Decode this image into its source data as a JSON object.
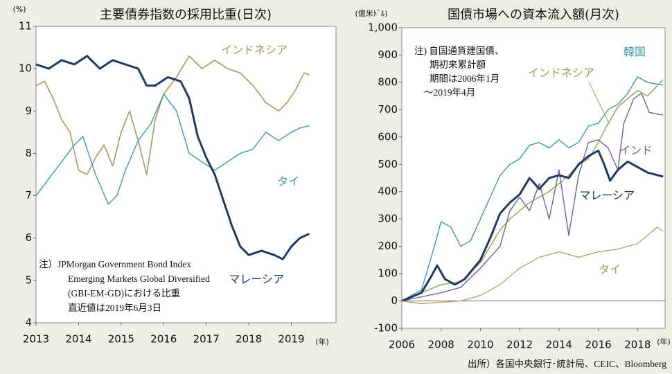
{
  "chart_data": [
    {
      "type": "line",
      "title": "主要債券指数の採用比重(日次)",
      "y_label": "(%)",
      "x_label": "(年)",
      "xlim": [
        2013,
        2020.05
      ],
      "xticks": [
        2013,
        2014,
        2015,
        2016,
        2017,
        2018,
        2019
      ],
      "ylim": [
        4,
        11
      ],
      "yticks": [
        4,
        5,
        6,
        7,
        8,
        9,
        10,
        11
      ],
      "note": [
        "注）JPMorgan Government Bond Index",
        "Emerging Markets Global Diversified",
        "(GBI-EM-GD)における比重",
        "直近値は2019年6月3日"
      ],
      "series": [
        {
          "name": "インドネシア",
          "color": "#a8985a",
          "x": [
            2013.0,
            2013.2,
            2013.4,
            2013.6,
            2013.8,
            2014.0,
            2014.2,
            2014.4,
            2014.6,
            2014.8,
            2015.0,
            2015.2,
            2015.4,
            2015.6,
            2015.8,
            2016.0,
            2016.3,
            2016.6,
            2016.9,
            2017.2,
            2017.5,
            2017.8,
            2018.1,
            2018.4,
            2018.7,
            2018.9,
            2019.1,
            2019.3,
            2019.42
          ],
          "values": [
            9.6,
            9.7,
            9.3,
            8.8,
            8.5,
            7.6,
            7.5,
            7.9,
            8.2,
            7.7,
            8.5,
            9.0,
            8.3,
            7.5,
            8.8,
            9.4,
            9.8,
            10.3,
            10.0,
            10.2,
            10.0,
            9.9,
            9.6,
            9.2,
            9.0,
            9.2,
            9.5,
            9.9,
            9.85
          ]
        },
        {
          "name": "タイ",
          "color": "#3a9aa8",
          "x": [
            2013.0,
            2013.3,
            2013.6,
            2013.9,
            2014.1,
            2014.4,
            2014.7,
            2014.9,
            2015.1,
            2015.4,
            2015.7,
            2016.0,
            2016.3,
            2016.6,
            2016.9,
            2017.2,
            2017.5,
            2017.8,
            2018.1,
            2018.4,
            2018.7,
            2019.0,
            2019.2,
            2019.42
          ],
          "values": [
            7.0,
            7.4,
            7.8,
            8.2,
            8.4,
            7.5,
            6.8,
            7.0,
            7.6,
            8.3,
            8.7,
            9.4,
            9.0,
            8.0,
            7.8,
            7.6,
            7.8,
            8.0,
            8.1,
            8.5,
            8.3,
            8.5,
            8.6,
            8.65
          ]
        },
        {
          "name": "マレーシア",
          "color": "#1f3864",
          "x": [
            2013.0,
            2013.3,
            2013.6,
            2013.9,
            2014.2,
            2014.5,
            2014.8,
            2015.1,
            2015.4,
            2015.6,
            2015.8,
            2016.1,
            2016.4,
            2016.6,
            2016.8,
            2017.0,
            2017.2,
            2017.4,
            2017.6,
            2017.8,
            2018.0,
            2018.3,
            2018.6,
            2018.8,
            2019.0,
            2019.2,
            2019.42
          ],
          "values": [
            10.1,
            10.0,
            10.2,
            10.1,
            10.3,
            10.0,
            10.2,
            10.1,
            10.0,
            9.6,
            9.6,
            9.8,
            9.7,
            9.3,
            8.4,
            7.9,
            7.5,
            6.9,
            6.3,
            5.8,
            5.6,
            5.7,
            5.6,
            5.5,
            5.8,
            6.0,
            6.1
          ]
        }
      ]
    },
    {
      "type": "line",
      "title": "国債市場への資本流入額(月次)",
      "y_label": "(億米ﾄﾞﾙ)",
      "x_label": "(年)",
      "xlim": [
        2006,
        2019.4
      ],
      "xticks": [
        2006,
        2008,
        2010,
        2012,
        2014,
        2016,
        2018
      ],
      "ylim": [
        -100,
        1000
      ],
      "yticks": [
        -100,
        0,
        100,
        200,
        300,
        400,
        500,
        600,
        700,
        800,
        900,
        {
          "value": 1000,
          "label": "1,000"
        }
      ],
      "note": [
        "注) 自国通貨建国債、",
        "期初来累計額",
        "期間は2006年1月",
        "～2019年4月"
      ],
      "source": "出所）各国中央銀行･統計局、CEIC、Bloomberg",
      "series": [
        {
          "name": "韓国",
          "color": "#3a9aa8",
          "x": [
            2006,
            2007,
            2007.5,
            2008,
            2008.5,
            2009,
            2009.5,
            2010,
            2010.5,
            2011,
            2011.5,
            2012,
            2012.5,
            2013,
            2013.5,
            2014,
            2014.5,
            2015,
            2015.5,
            2016,
            2016.5,
            2017,
            2017.5,
            2018,
            2018.5,
            2019.3
          ],
          "values": [
            0,
            40,
            160,
            290,
            270,
            200,
            220,
            300,
            380,
            460,
            500,
            520,
            570,
            580,
            560,
            590,
            560,
            580,
            640,
            650,
            700,
            720,
            760,
            820,
            800,
            790
          ]
        },
        {
          "name": "インドネシア",
          "color": "#8aa84a",
          "x": [
            2006,
            2007,
            2008,
            2009,
            2010,
            2010.5,
            2011,
            2011.5,
            2012,
            2012.5,
            2013,
            2013.5,
            2014,
            2014.5,
            2015,
            2015.5,
            2016,
            2016.5,
            2017,
            2017.5,
            2018,
            2018.5,
            2019.3
          ],
          "values": [
            0,
            30,
            60,
            70,
            140,
            200,
            260,
            300,
            330,
            360,
            380,
            400,
            430,
            460,
            500,
            520,
            580,
            650,
            710,
            740,
            770,
            750,
            810
          ]
        },
        {
          "name": "インド",
          "color": "#7a5a9a",
          "x": [
            2006,
            2008,
            2009,
            2010,
            2011,
            2011.5,
            2012,
            2012.5,
            2013,
            2013.5,
            2014,
            2014.5,
            2015,
            2015.5,
            2016,
            2016.5,
            2017,
            2017.3,
            2017.8,
            2018.2,
            2018.6,
            2019.3
          ],
          "values": [
            0,
            30,
            50,
            120,
            200,
            330,
            380,
            330,
            430,
            300,
            480,
            240,
            460,
            580,
            590,
            560,
            480,
            650,
            740,
            760,
            690,
            680
          ]
        },
        {
          "name": "マレーシア",
          "color": "#1f3864",
          "x": [
            2006,
            2007,
            2007.5,
            2007.8,
            2008.2,
            2008.7,
            2009.2,
            2010,
            2010.5,
            2011,
            2011.5,
            2012,
            2012.5,
            2013,
            2013.5,
            2014,
            2014.5,
            2015,
            2015.5,
            2016,
            2016.3,
            2016.6,
            2017,
            2017.5,
            2018,
            2018.5,
            2019.3
          ],
          "values": [
            0,
            30,
            90,
            130,
            80,
            60,
            80,
            150,
            230,
            320,
            360,
            390,
            450,
            410,
            450,
            460,
            450,
            500,
            530,
            550,
            500,
            440,
            480,
            510,
            490,
            470,
            455
          ]
        },
        {
          "name": "タイ",
          "color": "#a8985a",
          "x": [
            2006,
            2007,
            2008,
            2009,
            2010,
            2011,
            2012,
            2013,
            2014,
            2015,
            2016,
            2017,
            2018,
            2018.5,
            2019,
            2019.3
          ],
          "values": [
            0,
            -10,
            -5,
            0,
            20,
            60,
            120,
            160,
            180,
            160,
            180,
            190,
            210,
            240,
            270,
            255
          ]
        }
      ]
    }
  ]
}
